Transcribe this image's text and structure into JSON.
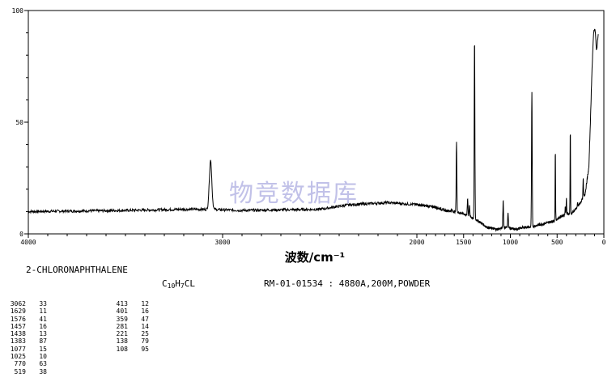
{
  "watermark": "物竞数据库",
  "compound": {
    "name": "2-CHLORONAPHTHALENE",
    "formula_c": "C",
    "formula_c_sub": "10",
    "formula_h": "H",
    "formula_h_sub": "7",
    "formula_cl": "CL",
    "record": "RM-01-01534 : 4880A,200M,POWDER"
  },
  "peaks_col1": [
    {
      "wn": "3062",
      "i": "33"
    },
    {
      "wn": "1629",
      "i": "11"
    },
    {
      "wn": "1576",
      "i": "41"
    },
    {
      "wn": "1457",
      "i": "16"
    },
    {
      "wn": "1438",
      "i": "13"
    },
    {
      "wn": "1383",
      "i": "87"
    },
    {
      "wn": "1077",
      "i": "15"
    },
    {
      "wn": "1025",
      "i": "10"
    },
    {
      "wn": "770",
      "i": "63"
    },
    {
      "wn": "519",
      "i": "38"
    }
  ],
  "peaks_col2": [
    {
      "wn": "413",
      "i": "12"
    },
    {
      "wn": "401",
      "i": "16"
    },
    {
      "wn": "359",
      "i": "47"
    },
    {
      "wn": "281",
      "i": "14"
    },
    {
      "wn": "221",
      "i": "25"
    },
    {
      "wn": "138",
      "i": "79"
    },
    {
      "wn": "108",
      "i": "95"
    }
  ],
  "chart_data": {
    "type": "line",
    "title": "",
    "xlabel": "波数/cm⁻¹",
    "ylabel": "",
    "xlim": [
      4000,
      0
    ],
    "ylim": [
      0,
      100
    ],
    "x_ticks": [
      4000,
      3000,
      2000,
      1500,
      1000,
      500,
      0
    ],
    "x_tick_labels": [
      "4000",
      "3000",
      "2000",
      "1500",
      "1000",
      "500",
      "0"
    ],
    "y_ticks": [
      0,
      50,
      100
    ],
    "y_tick_labels": [
      "0",
      "50",
      "100"
    ],
    "baseline": [
      [
        4000,
        10
      ],
      [
        3500,
        10.5
      ],
      [
        3200,
        11
      ],
      [
        3080,
        11
      ],
      [
        2900,
        10.5
      ],
      [
        2500,
        11
      ],
      [
        2350,
        13
      ],
      [
        2150,
        14
      ],
      [
        1900,
        12.5
      ],
      [
        1800,
        12
      ],
      [
        1700,
        10.5
      ],
      [
        1600,
        10
      ],
      [
        1500,
        9
      ],
      [
        1450,
        8
      ],
      [
        1350,
        6
      ],
      [
        1250,
        3
      ],
      [
        1150,
        2
      ],
      [
        1050,
        3
      ],
      [
        950,
        2
      ],
      [
        850,
        3
      ],
      [
        780,
        3
      ],
      [
        700,
        4
      ],
      [
        600,
        5
      ],
      [
        520,
        6
      ],
      [
        450,
        8
      ],
      [
        400,
        9
      ],
      [
        350,
        9
      ],
      [
        300,
        11
      ],
      [
        250,
        14
      ],
      [
        200,
        18
      ],
      [
        160,
        30
      ],
      [
        140,
        55
      ],
      [
        130,
        70
      ],
      [
        120,
        80
      ],
      [
        110,
        90
      ],
      [
        100,
        92
      ],
      [
        90,
        90
      ],
      [
        80,
        82
      ],
      [
        70,
        85
      ],
      [
        60,
        90
      ]
    ],
    "series": [
      {
        "values": [
          [
            3062,
            33
          ],
          [
            1629,
            11
          ],
          [
            1576,
            41
          ],
          [
            1457,
            16
          ],
          [
            1438,
            13
          ],
          [
            1383,
            87
          ],
          [
            1077,
            15
          ],
          [
            1025,
            10
          ],
          [
            770,
            63
          ],
          [
            519,
            38
          ],
          [
            413,
            12
          ],
          [
            401,
            16
          ],
          [
            359,
            47
          ],
          [
            281,
            14
          ],
          [
            221,
            25
          ],
          [
            138,
            79
          ],
          [
            108,
            95
          ]
        ]
      }
    ]
  }
}
